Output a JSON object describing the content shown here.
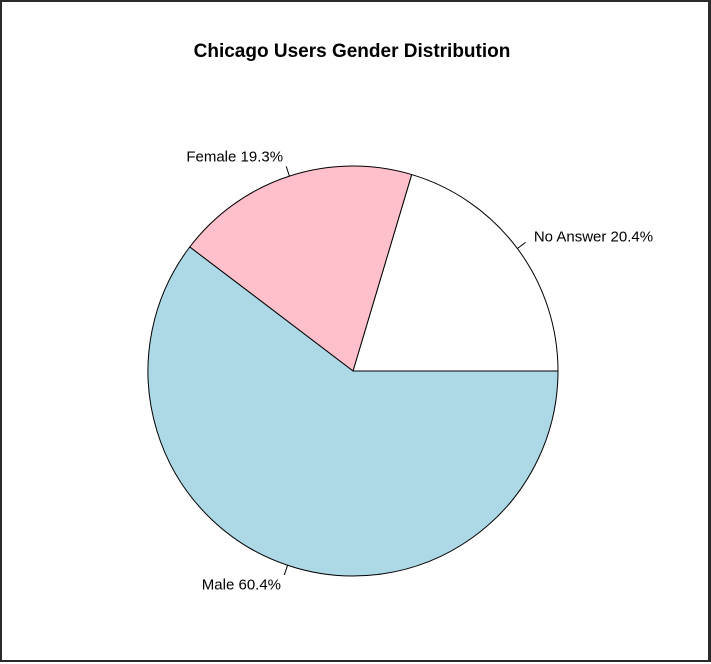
{
  "chart_data": {
    "type": "pie",
    "title": "Chicago Users Gender Distribution",
    "slices": [
      {
        "name": "No Answer",
        "label": "No Answer 20.4%",
        "percent": 20.4,
        "color": "#ffffff"
      },
      {
        "name": "Female",
        "label": "Female 19.3%",
        "percent": 19.3,
        "color": "#ffc0cb"
      },
      {
        "name": "Male",
        "label": "Male 60.4%",
        "percent": 60.4,
        "color": "#add8e6"
      }
    ],
    "start_angle_deg": 0,
    "direction": "counterclockwise",
    "border_color": "#000000",
    "legend": "none"
  }
}
